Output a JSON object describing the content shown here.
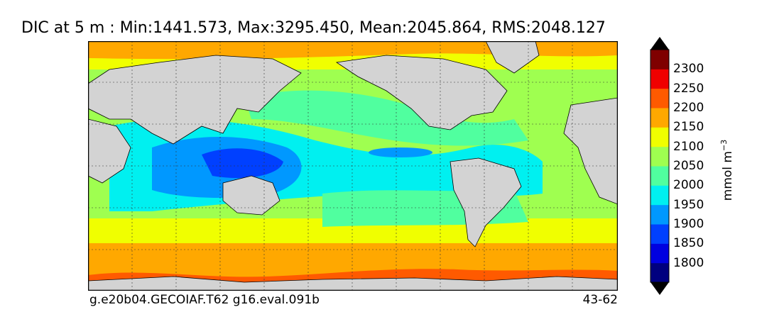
{
  "title": "DIC at 5 m : Min:1441.573, Max:3295.450, Mean:2045.864, RMS:2048.127",
  "footer_left": "g.e20b04.GECOIAF.T62 g16.eval.091b",
  "footer_right": "43-62",
  "colorbar": {
    "unit_prefix": "mmol m",
    "unit_exp": "−3",
    "ticks": [
      "2300",
      "2250",
      "2200",
      "2150",
      "2100",
      "2050",
      "2000",
      "1950",
      "1900",
      "1850",
      "1800"
    ],
    "colors": [
      "#00007f",
      "#0000e0",
      "#0040ff",
      "#0098ff",
      "#00f0f0",
      "#50ff9f",
      "#9fff50",
      "#f0ff00",
      "#ffa800",
      "#ff5a00",
      "#f00000",
      "#7f0000"
    ]
  },
  "map": {
    "land_color": "#d3d3d3",
    "projection": "cylindrical",
    "gridlines": true
  }
}
